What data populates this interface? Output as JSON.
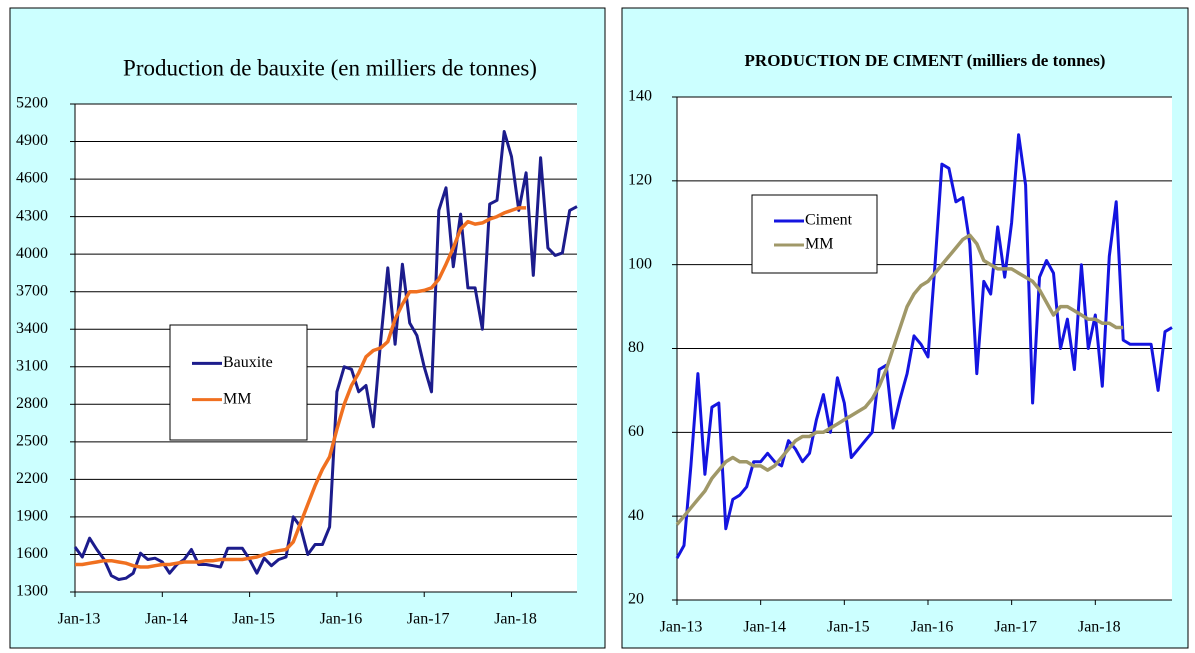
{
  "chart_data": [
    {
      "type": "line",
      "title": "Production de bauxite (en milliers de tonnes)",
      "categories": [
        "Jan-13",
        null,
        null,
        null,
        null,
        null,
        null,
        null,
        null,
        null,
        null,
        null,
        "Jan-14",
        null,
        null,
        null,
        null,
        null,
        null,
        null,
        null,
        null,
        null,
        null,
        "Jan-15",
        null,
        null,
        null,
        null,
        null,
        null,
        null,
        null,
        null,
        null,
        null,
        "Jan-16",
        null,
        null,
        null,
        null,
        null,
        null,
        null,
        null,
        null,
        null,
        null,
        "Jan-17",
        null,
        null,
        null,
        null,
        null,
        null,
        null,
        null,
        null,
        null,
        null,
        "Jan-18",
        null,
        null,
        null,
        null,
        null,
        null,
        null,
        null,
        null
      ],
      "series": [
        {
          "name": "Bauxite",
          "color": "#1c1c8c",
          "values": [
            1660,
            1580,
            1730,
            1640,
            1560,
            1430,
            1400,
            1410,
            1450,
            1610,
            1560,
            1570,
            1540,
            1450,
            1520,
            1560,
            1640,
            1520,
            1520,
            1510,
            1500,
            1650,
            1650,
            1650,
            1560,
            1450,
            1570,
            1510,
            1560,
            1580,
            1900,
            1820,
            1600,
            1680,
            1680,
            1820,
            2900,
            3100,
            3080,
            2900,
            2950,
            2620,
            3300,
            3890,
            3280,
            3920,
            3450,
            3350,
            3100,
            2900,
            4350,
            4530,
            3900,
            4320,
            3730,
            3730,
            3400,
            4400,
            4430,
            4980,
            4780,
            4350,
            4650,
            3830,
            4770,
            4050,
            3990,
            4010,
            4350,
            4380
          ]
        },
        {
          "name": "MM",
          "color": "#f07020",
          "values": [
            1520,
            1520,
            1530,
            1540,
            1550,
            1550,
            1540,
            1530,
            1510,
            1500,
            1500,
            1510,
            1520,
            1520,
            1530,
            1540,
            1540,
            1540,
            1550,
            1550,
            1560,
            1560,
            1560,
            1560,
            1570,
            1580,
            1600,
            1620,
            1630,
            1640,
            1700,
            1850,
            2000,
            2150,
            2280,
            2380,
            2600,
            2800,
            2950,
            3050,
            3180,
            3230,
            3250,
            3300,
            3480,
            3600,
            3700,
            3700,
            3710,
            3730,
            3800,
            3920,
            4050,
            4200,
            4260,
            4240,
            4250,
            4280,
            4300,
            4330,
            4350,
            4370,
            4370,
            null,
            null,
            null,
            null,
            null,
            null,
            null
          ]
        }
      ],
      "ylim": [
        1300,
        5200
      ],
      "yticks": [
        1300,
        1600,
        1900,
        2200,
        2500,
        2800,
        3100,
        3400,
        3700,
        4000,
        4300,
        4600,
        4900,
        5200
      ],
      "grid": true
    },
    {
      "type": "line",
      "title": "PRODUCTION DE CIMENT (milliers de tonnes)",
      "categories": [
        "Jan-13",
        null,
        null,
        null,
        null,
        null,
        null,
        null,
        null,
        null,
        null,
        null,
        "Jan-14",
        null,
        null,
        null,
        null,
        null,
        null,
        null,
        null,
        null,
        null,
        null,
        "Jan-15",
        null,
        null,
        null,
        null,
        null,
        null,
        null,
        null,
        null,
        null,
        null,
        "Jan-16",
        null,
        null,
        null,
        null,
        null,
        null,
        null,
        null,
        null,
        null,
        null,
        "Jan-17",
        null,
        null,
        null,
        null,
        null,
        null,
        null,
        null,
        null,
        null,
        null,
        "Jan-18",
        null,
        null,
        null,
        null,
        null,
        null,
        null,
        null,
        null,
        null,
        null
      ],
      "series": [
        {
          "name": "Ciment",
          "color": "#1414e0",
          "values": [
            30,
            33,
            52,
            74,
            50,
            66,
            67,
            37,
            44,
            45,
            47,
            53,
            53,
            55,
            53,
            52,
            58,
            56,
            53,
            55,
            63,
            69,
            60,
            73,
            67,
            54,
            56,
            58,
            60,
            75,
            76,
            61,
            68,
            74,
            83,
            81,
            78,
            100,
            124,
            123,
            115,
            116,
            105,
            74,
            96,
            93,
            109,
            97,
            110,
            131,
            119,
            67,
            97,
            101,
            98,
            80,
            87,
            75,
            100,
            80,
            88,
            71,
            102,
            115,
            82,
            81,
            81,
            81,
            81,
            70,
            84,
            85
          ]
        },
        {
          "name": "MM",
          "color": "#a09868",
          "values": [
            38,
            40,
            42,
            44,
            46,
            49,
            51,
            53,
            54,
            53,
            53,
            52,
            52,
            51,
            52,
            54,
            56,
            58,
            59,
            59,
            60,
            60,
            61,
            62,
            63,
            64,
            65,
            66,
            68,
            71,
            75,
            80,
            85,
            90,
            93,
            95,
            96,
            98,
            100,
            102,
            104,
            106,
            107,
            105,
            101,
            100,
            99,
            99,
            99,
            98,
            97,
            96,
            94,
            91,
            88,
            90,
            90,
            89,
            88,
            87,
            87,
            86,
            86,
            85,
            85,
            null,
            null,
            null,
            null,
            null,
            null,
            null
          ]
        }
      ],
      "ylim": [
        20,
        140
      ],
      "yticks": [
        20,
        40,
        60,
        80,
        100,
        120,
        140
      ],
      "grid": true
    }
  ]
}
